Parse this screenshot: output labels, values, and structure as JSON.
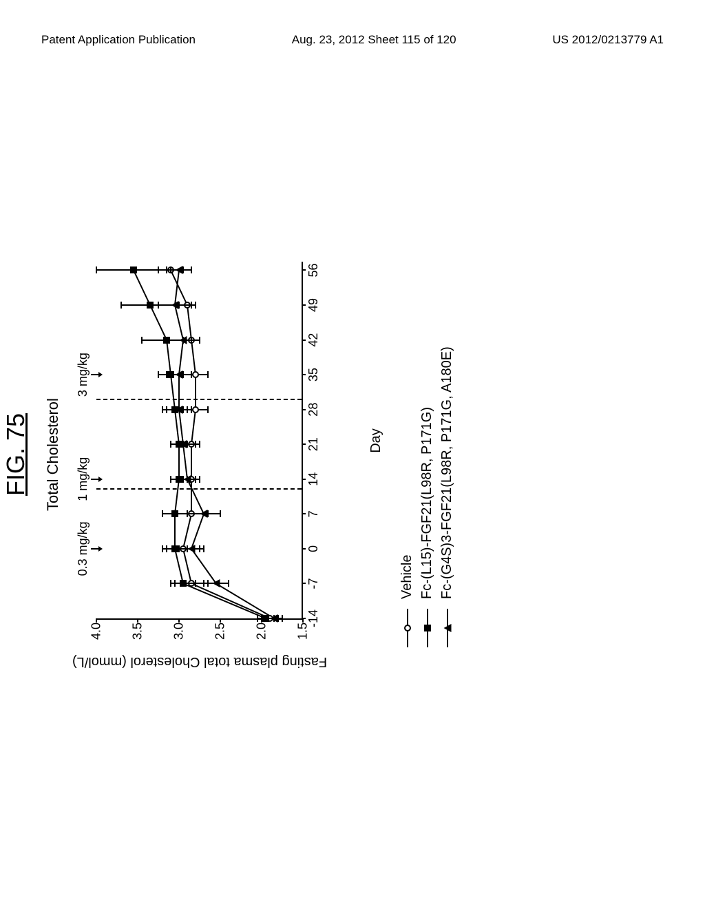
{
  "header": {
    "left": "Patent Application Publication",
    "center": "Aug. 23, 2012  Sheet 115 of 120",
    "right": "US 2012/0213779 A1"
  },
  "figure": {
    "label": "FIG. 75",
    "chart": {
      "type": "line",
      "title": "Total Cholesterol",
      "xlabel": "Day",
      "ylabel": "Fasting plasma total Cholesterol (mmol/L)",
      "xlim": [
        -14,
        58
      ],
      "ylim": [
        1.5,
        4.0
      ],
      "xticks": [
        -14,
        -7,
        0,
        7,
        14,
        21,
        28,
        35,
        42,
        49,
        56
      ],
      "yticks": [
        1.5,
        2.0,
        2.5,
        3.0,
        3.5,
        4.0
      ],
      "background_color": "#ffffff",
      "axis_color": "#000000",
      "line_color": "#000000",
      "line_width": 2,
      "dose_annotations": [
        {
          "x": 0,
          "label": "0.3 mg/kg"
        },
        {
          "x": 14,
          "label": "1 mg/kg"
        },
        {
          "x": 35,
          "label": "3 mg/kg"
        }
      ],
      "dose_separators": [
        12,
        30
      ],
      "series": [
        {
          "name": "Vehicle",
          "marker": "circle",
          "x": [
            -14,
            -7,
            0,
            7,
            14,
            21,
            28,
            35,
            42,
            49,
            56
          ],
          "y": [
            1.9,
            2.85,
            2.95,
            2.85,
            2.85,
            2.85,
            2.8,
            2.8,
            2.85,
            2.9,
            3.1
          ],
          "err": [
            0.1,
            0.2,
            0.2,
            0.2,
            0.1,
            0.1,
            0.15,
            0.15,
            0.1,
            0.1,
            0.15
          ]
        },
        {
          "name": "Fc-(L15)-FGF21(L98R, P171G)",
          "marker": "square",
          "x": [
            -14,
            -7,
            0,
            7,
            14,
            21,
            28,
            35,
            42,
            49,
            56
          ],
          "y": [
            1.95,
            2.95,
            3.05,
            3.05,
            3.0,
            3.0,
            3.05,
            3.1,
            3.15,
            3.35,
            3.55
          ],
          "err": [
            0.1,
            0.15,
            0.15,
            0.15,
            0.1,
            0.1,
            0.15,
            0.15,
            0.3,
            0.35,
            0.45
          ]
        },
        {
          "name": "Fc-(G4S)3-FGF21(L98R, P171G, A180E)",
          "marker": "triangle",
          "x": [
            -14,
            -7,
            0,
            7,
            14,
            21,
            28,
            35,
            42,
            49,
            56
          ],
          "y": [
            1.85,
            2.55,
            2.85,
            2.7,
            2.9,
            2.95,
            3.0,
            3.0,
            2.95,
            3.05,
            3.0
          ],
          "err": [
            0.1,
            0.15,
            0.15,
            0.2,
            0.1,
            0.15,
            0.15,
            0.15,
            0.2,
            0.2,
            0.15
          ]
        }
      ]
    }
  }
}
